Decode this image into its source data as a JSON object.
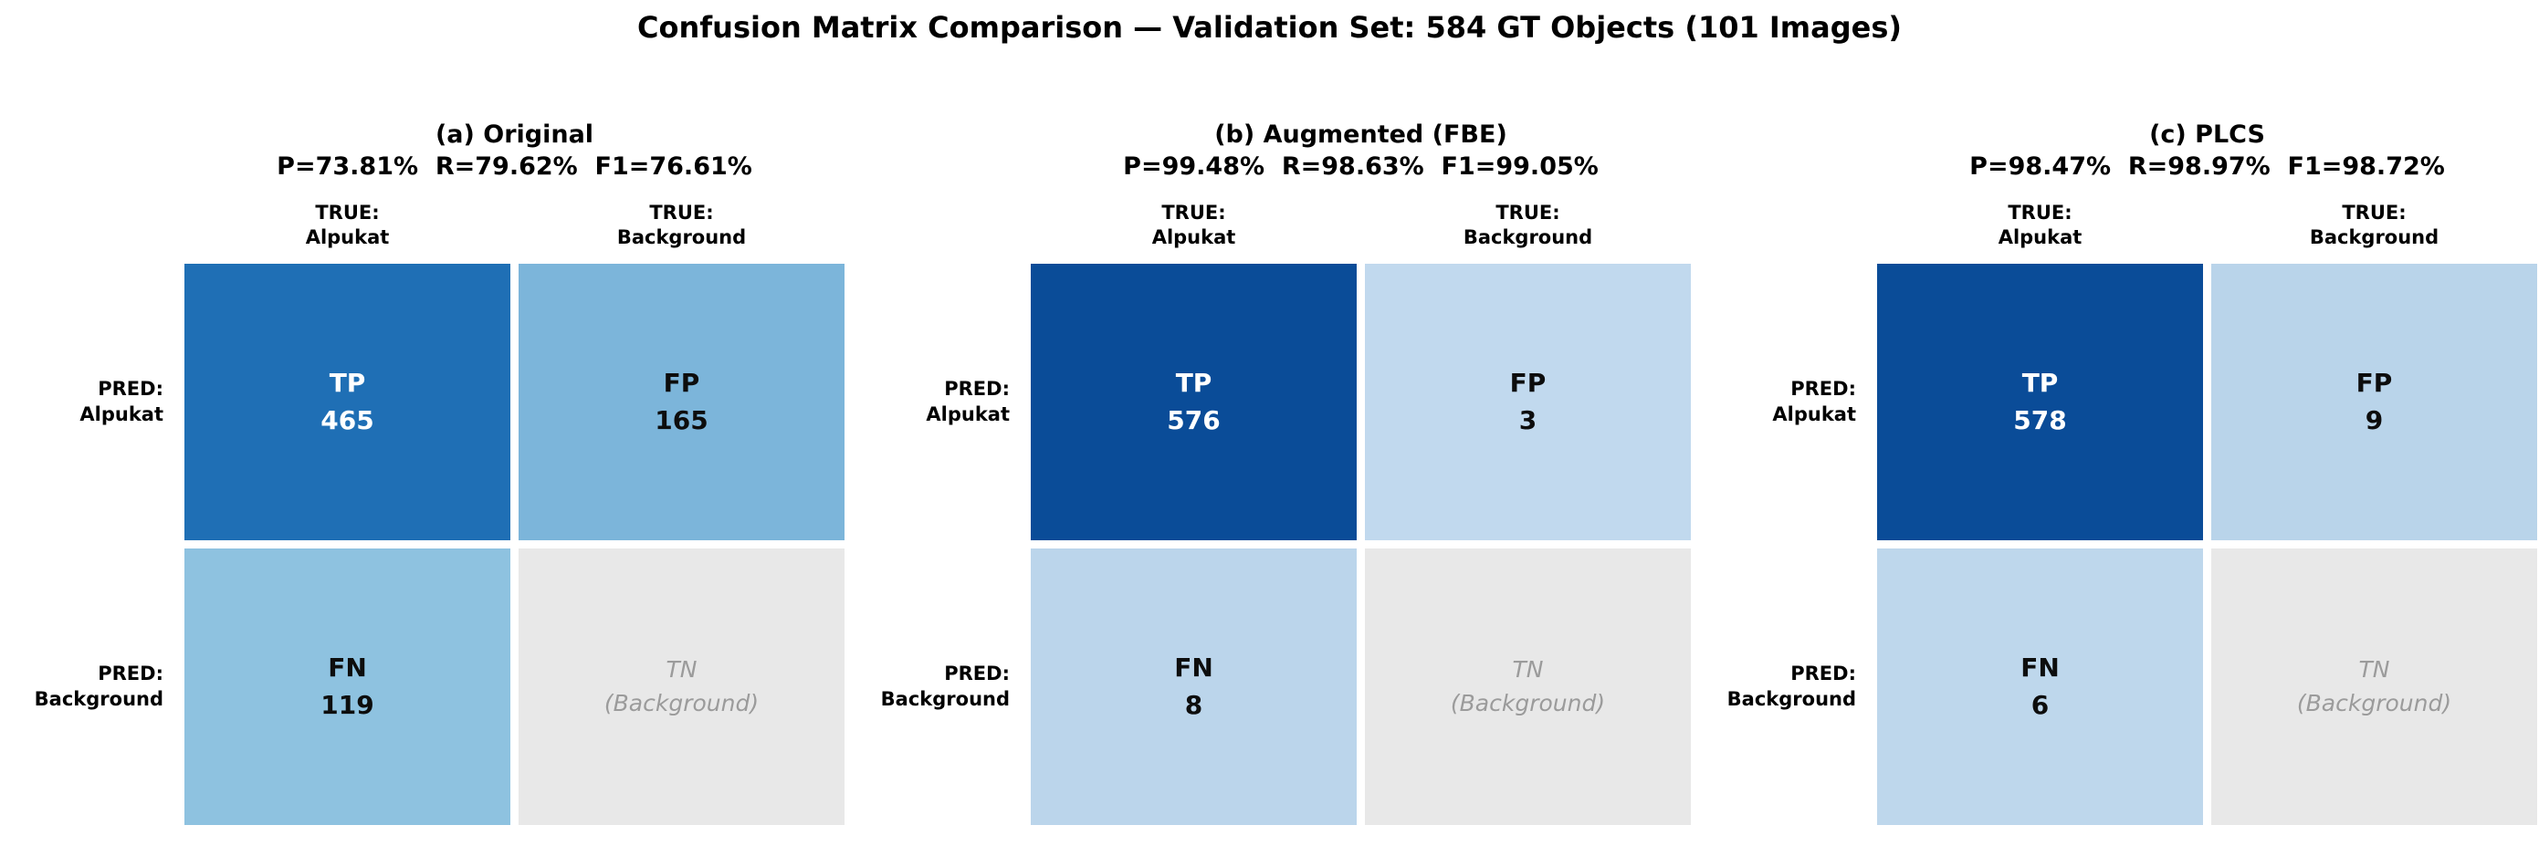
{
  "title": "Confusion Matrix Comparison — Validation Set: 584 GT Objects (101 Images)",
  "chart_data": [
    {
      "type": "heatmap",
      "title": "(a) Original",
      "metrics_label": "P=73.81%  R=79.62%  F1=76.61%",
      "precision_pct": 73.81,
      "recall_pct": 79.62,
      "f1_pct": 76.61,
      "true_categories": [
        "Alpukat",
        "Background"
      ],
      "pred_categories": [
        "Alpukat",
        "Background"
      ],
      "col_headers": [
        {
          "line1": "TRUE:",
          "line2": "Alpukat"
        },
        {
          "line1": "TRUE:",
          "line2": "Background"
        }
      ],
      "row_headers": [
        {
          "line1": "PRED:",
          "line2": "Alpukat"
        },
        {
          "line1": "PRED:",
          "line2": "Background"
        }
      ],
      "counts": {
        "TP": 465,
        "FP": 165,
        "FN": 119,
        "TN": null
      },
      "cells": [
        [
          {
            "label": "TP",
            "display": "465",
            "bg": "#1f6fb5",
            "fg": "#ffffff"
          },
          {
            "label": "FP",
            "display": "165",
            "bg": "#7cb5da",
            "fg": "#0d0d0d"
          }
        ],
        [
          {
            "label": "FN",
            "display": "119",
            "bg": "#8ec2e0",
            "fg": "#0d0d0d"
          },
          {
            "label": "TN",
            "display": "(Background)",
            "bg": "#e8e8e8",
            "fg": "#9b9b9b"
          }
        ]
      ]
    },
    {
      "type": "heatmap",
      "title": "(b) Augmented (FBE)",
      "metrics_label": "P=99.48%  R=98.63%  F1=99.05%",
      "precision_pct": 99.48,
      "recall_pct": 98.63,
      "f1_pct": 99.05,
      "true_categories": [
        "Alpukat",
        "Background"
      ],
      "pred_categories": [
        "Alpukat",
        "Background"
      ],
      "col_headers": [
        {
          "line1": "TRUE:",
          "line2": "Alpukat"
        },
        {
          "line1": "TRUE:",
          "line2": "Background"
        }
      ],
      "row_headers": [
        {
          "line1": "PRED:",
          "line2": "Alpukat"
        },
        {
          "line1": "PRED:",
          "line2": "Background"
        }
      ],
      "counts": {
        "TP": 576,
        "FP": 3,
        "FN": 8,
        "TN": null
      },
      "cells": [
        [
          {
            "label": "TP",
            "display": "576",
            "bg": "#0a4c98",
            "fg": "#ffffff"
          },
          {
            "label": "FP",
            "display": "3",
            "bg": "#c1d9ee",
            "fg": "#0d0d0d"
          }
        ],
        [
          {
            "label": "FN",
            "display": "8",
            "bg": "#bbd5eb",
            "fg": "#0d0d0d"
          },
          {
            "label": "TN",
            "display": "(Background)",
            "bg": "#e8e8e8",
            "fg": "#9b9b9b"
          }
        ]
      ]
    },
    {
      "type": "heatmap",
      "title": "(c) PLCS",
      "metrics_label": "P=98.47%  R=98.97%  F1=98.72%",
      "precision_pct": 98.47,
      "recall_pct": 98.97,
      "f1_pct": 98.72,
      "true_categories": [
        "Alpukat",
        "Background"
      ],
      "pred_categories": [
        "Alpukat",
        "Background"
      ],
      "col_headers": [
        {
          "line1": "TRUE:",
          "line2": "Alpukat"
        },
        {
          "line1": "TRUE:",
          "line2": "Background"
        }
      ],
      "row_headers": [
        {
          "line1": "PRED:",
          "line2": "Alpukat"
        },
        {
          "line1": "PRED:",
          "line2": "Background"
        }
      ],
      "counts": {
        "TP": 578,
        "FP": 9,
        "FN": 6,
        "TN": null
      },
      "cells": [
        [
          {
            "label": "TP",
            "display": "578",
            "bg": "#0a4c98",
            "fg": "#ffffff"
          },
          {
            "label": "FP",
            "display": "9",
            "bg": "#b9d4ea",
            "fg": "#0d0d0d"
          }
        ],
        [
          {
            "label": "FN",
            "display": "6",
            "bg": "#bed7ec",
            "fg": "#0d0d0d"
          },
          {
            "label": "TN",
            "display": "(Background)",
            "bg": "#e8e8e8",
            "fg": "#9b9b9b"
          }
        ]
      ]
    }
  ]
}
